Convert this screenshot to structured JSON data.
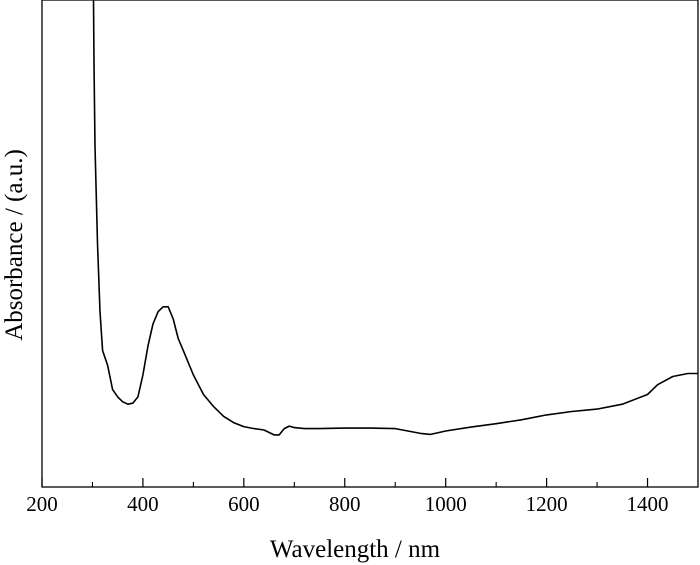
{
  "chart_data": {
    "type": "line",
    "title": "",
    "xlabel": "Wavelength / nm",
    "ylabel": "Absorbance / (a.u.)",
    "xlim": [
      200,
      1500
    ],
    "ylim": [
      0,
      1
    ],
    "x_ticks": [
      200,
      400,
      600,
      800,
      1000,
      1200,
      1400
    ],
    "x_tick_labels": [
      "200",
      "400",
      "600",
      "800",
      "1000",
      "1200",
      "1400"
    ],
    "show_y_tick_labels": false,
    "grid": false,
    "legend": "none",
    "line_color": "#000000",
    "series": [
      {
        "x": [
          302,
          303,
          305,
          310,
          315,
          320,
          330,
          340,
          350,
          360,
          370,
          380,
          390,
          400,
          410,
          420,
          430,
          440,
          450,
          460,
          470,
          480,
          500,
          520,
          540,
          560,
          580,
          600,
          620,
          640,
          660,
          670,
          680,
          690,
          700,
          720,
          750,
          800,
          850,
          900,
          950,
          970,
          1000,
          1050,
          1100,
          1150,
          1200,
          1250,
          1300,
          1350,
          1400,
          1420,
          1450,
          1480,
          1500
        ],
        "y": [
          1.0,
          0.87,
          0.7,
          0.5,
          0.36,
          0.28,
          0.25,
          0.2,
          0.185,
          0.175,
          0.17,
          0.172,
          0.185,
          0.23,
          0.29,
          0.335,
          0.36,
          0.37,
          0.37,
          0.345,
          0.305,
          0.28,
          0.23,
          0.19,
          0.165,
          0.145,
          0.132,
          0.124,
          0.12,
          0.117,
          0.107,
          0.107,
          0.12,
          0.125,
          0.122,
          0.12,
          0.12,
          0.121,
          0.121,
          0.12,
          0.11,
          0.108,
          0.115,
          0.123,
          0.13,
          0.138,
          0.148,
          0.155,
          0.16,
          0.17,
          0.19,
          0.21,
          0.227,
          0.233,
          0.233
        ]
      }
    ]
  }
}
